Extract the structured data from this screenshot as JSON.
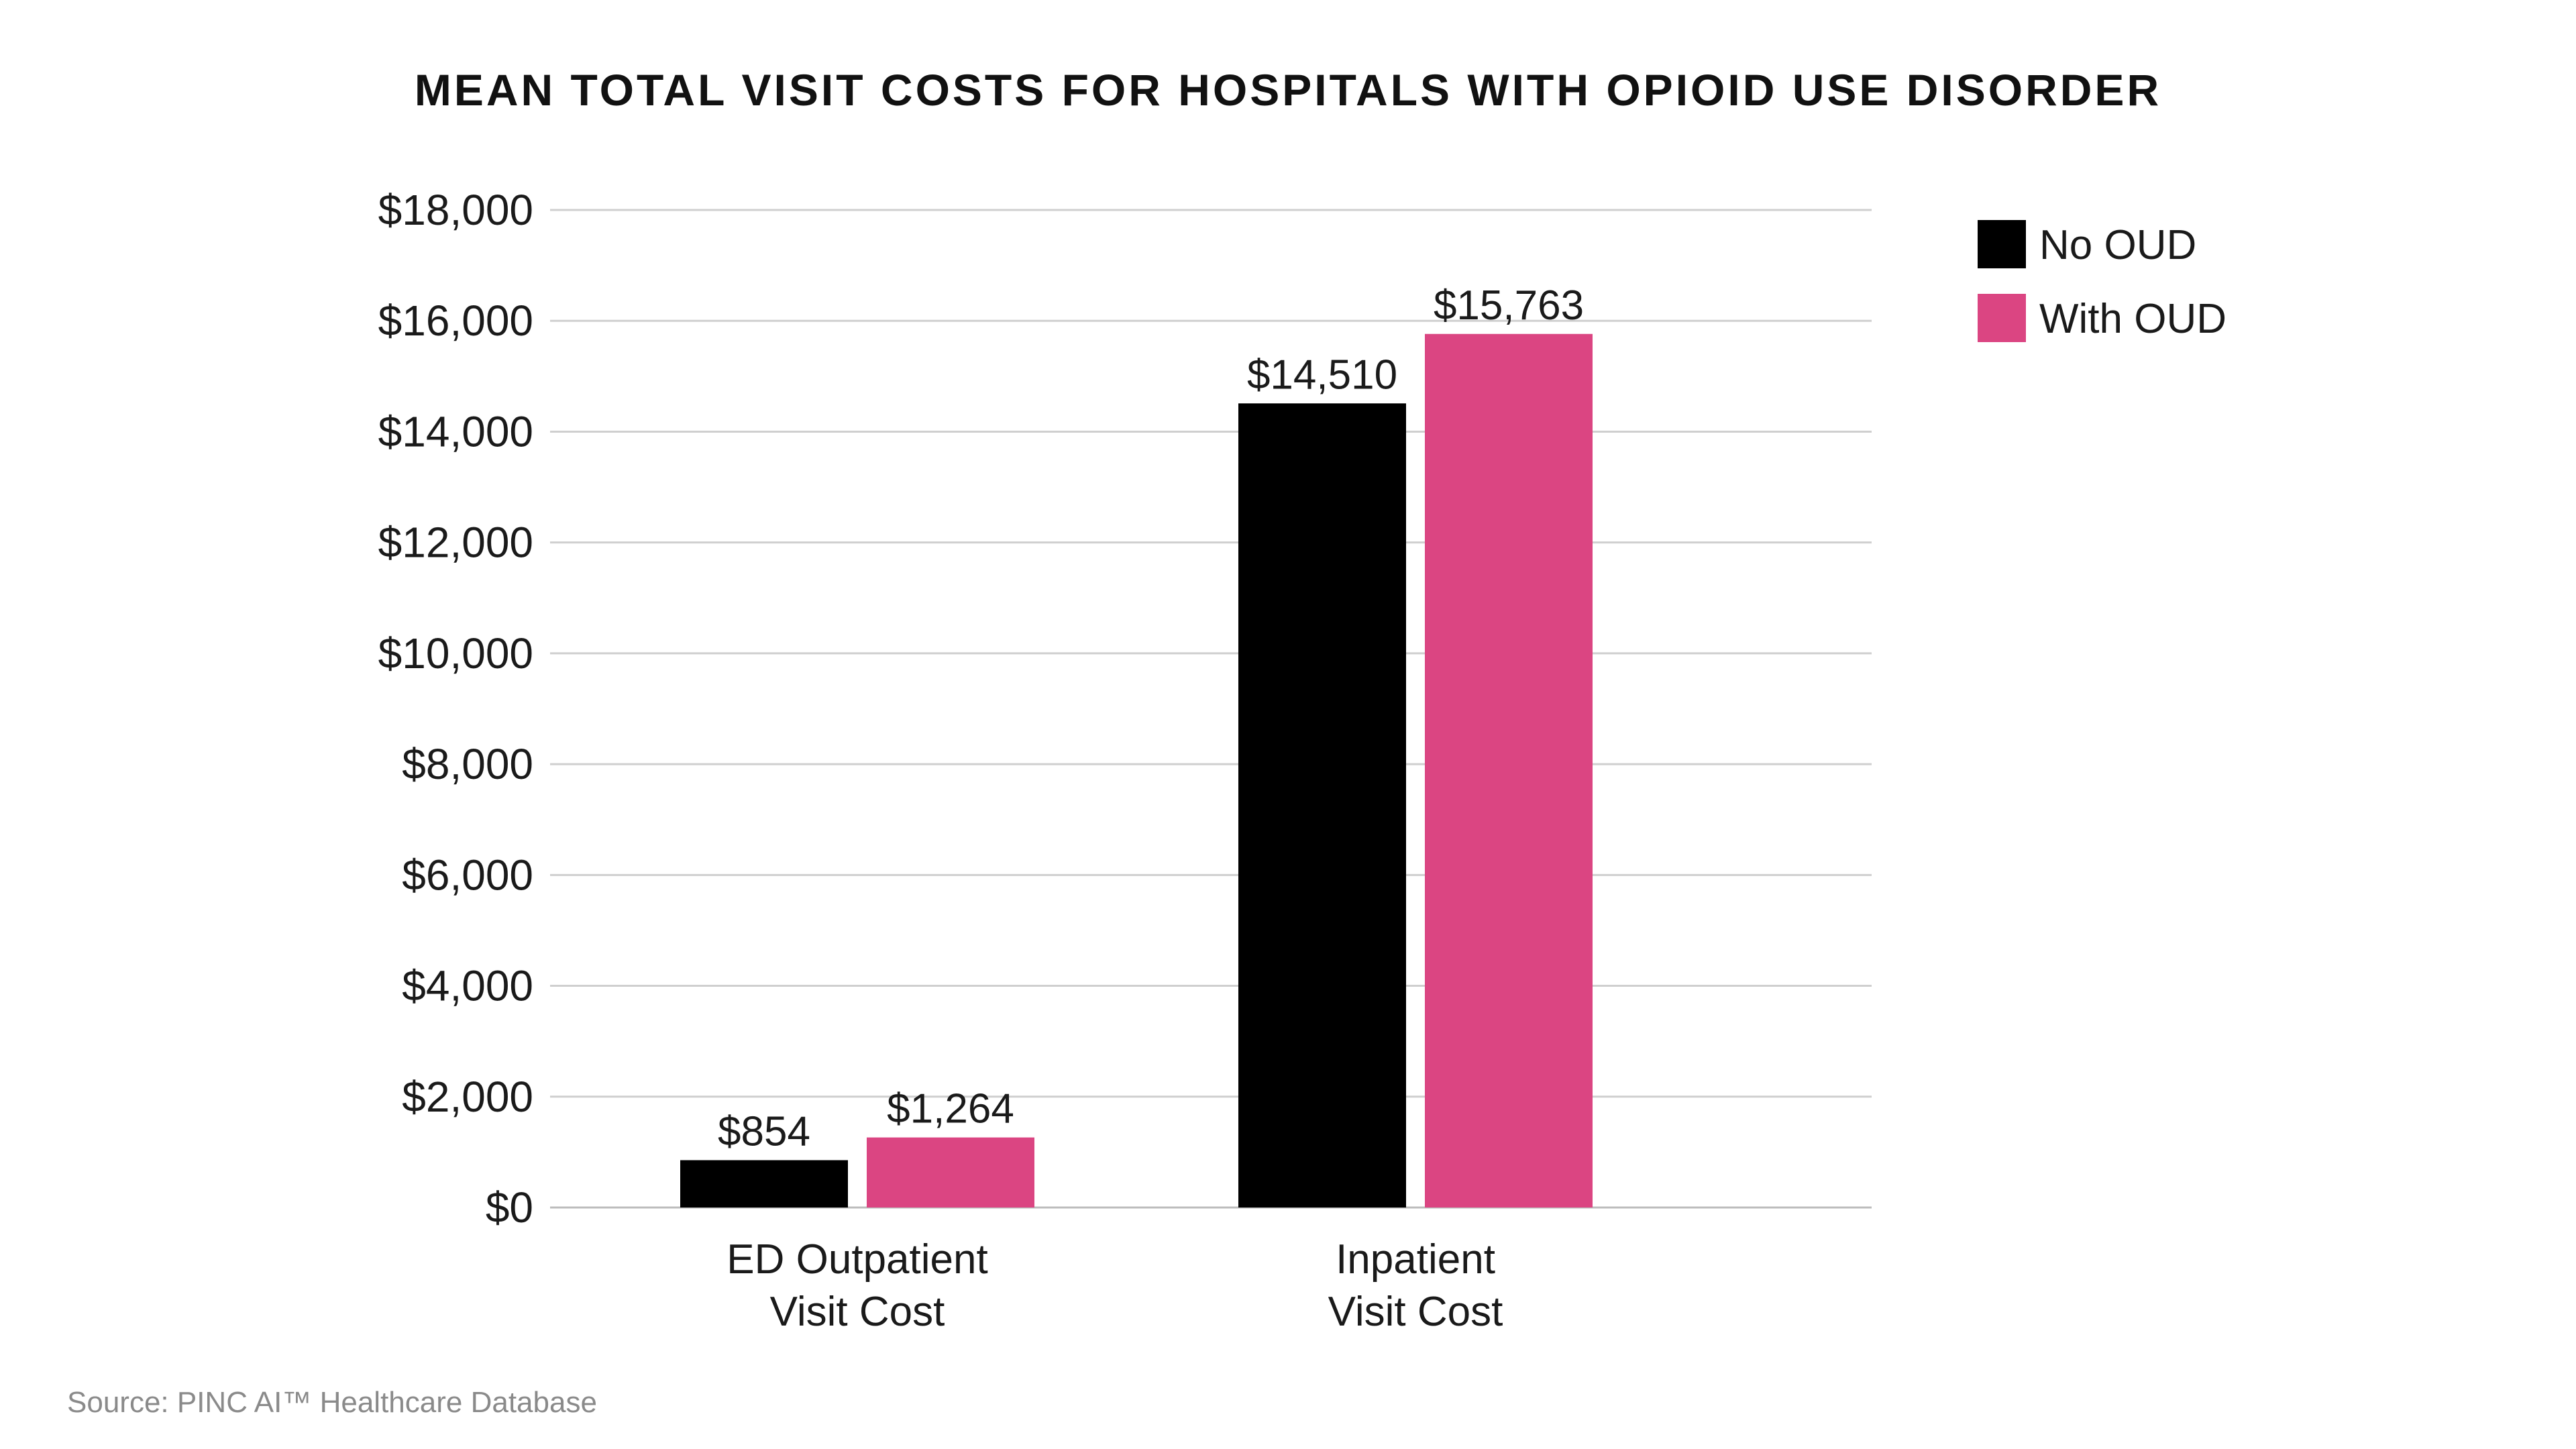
{
  "chart_data": {
    "type": "bar",
    "title": "MEAN TOTAL VISIT COSTS FOR HOSPITALS WITH OPIOID USE DISORDER",
    "categories": [
      [
        "ED Outpatient",
        "Visit Cost"
      ],
      [
        "Inpatient",
        "Visit Cost"
      ]
    ],
    "series": [
      {
        "name": "No OUD",
        "color": "#000000",
        "values": [
          854,
          14510
        ],
        "labels": [
          "$854",
          "$14,510"
        ]
      },
      {
        "name": "With OUD",
        "color": "#DB4582",
        "values": [
          1264,
          15763
        ],
        "labels": [
          "$1,264",
          "$15,763"
        ]
      }
    ],
    "xlabel": "",
    "ylabel": "",
    "ylim": [
      0,
      18000
    ],
    "yticks": [
      0,
      2000,
      4000,
      6000,
      8000,
      10000,
      12000,
      14000,
      16000,
      18000
    ],
    "ytick_labels": [
      "$0",
      "$2,000",
      "$4,000",
      "$6,000",
      "$8,000",
      "$10,000",
      "$12,000",
      "$14,000",
      "$16,000",
      "$18,000"
    ],
    "grid": true,
    "legend_position": "top-right",
    "source": "Source: PINC AI™ Healthcare Database"
  }
}
